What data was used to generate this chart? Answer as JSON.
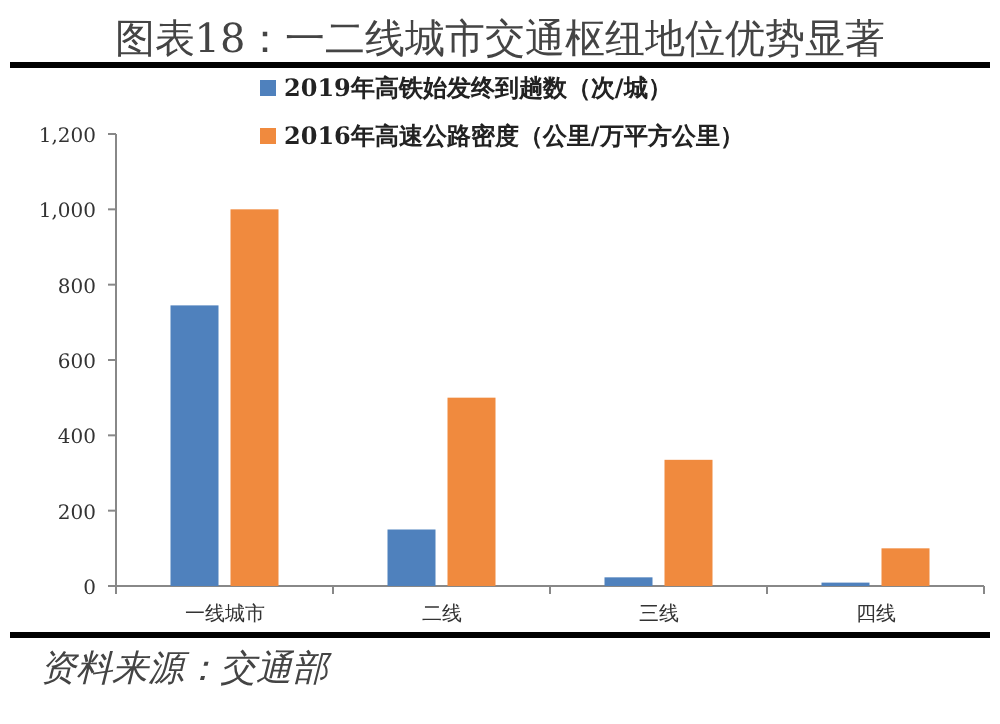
{
  "chart_data": {
    "type": "bar",
    "title": "图表18：一二线城市交通枢纽地位优势显著",
    "categories": [
      "一线城市",
      "二线",
      "三线",
      "四线"
    ],
    "series": [
      {
        "name": "2019年高铁始发终到趟数（次/城）",
        "color": "#4f81bd",
        "values": [
          745,
          150,
          23,
          9
        ]
      },
      {
        "name": "2016年高速公路密度（公里/万平方公里）",
        "color": "#f08a3e",
        "values": [
          1000,
          500,
          335,
          100
        ]
      }
    ],
    "ylim": [
      0,
      1200
    ],
    "yticks": [
      {
        "value": 0,
        "label": "0"
      },
      {
        "value": 200,
        "label": "200"
      },
      {
        "value": 400,
        "label": "400"
      },
      {
        "value": 600,
        "label": "600"
      },
      {
        "value": 800,
        "label": "800"
      },
      {
        "value": 1000,
        "label": "1,000"
      },
      {
        "value": 1200,
        "label": "1,200"
      }
    ],
    "legend": "top",
    "grid": false,
    "annotations": [
      "资料来源：交通部"
    ]
  }
}
